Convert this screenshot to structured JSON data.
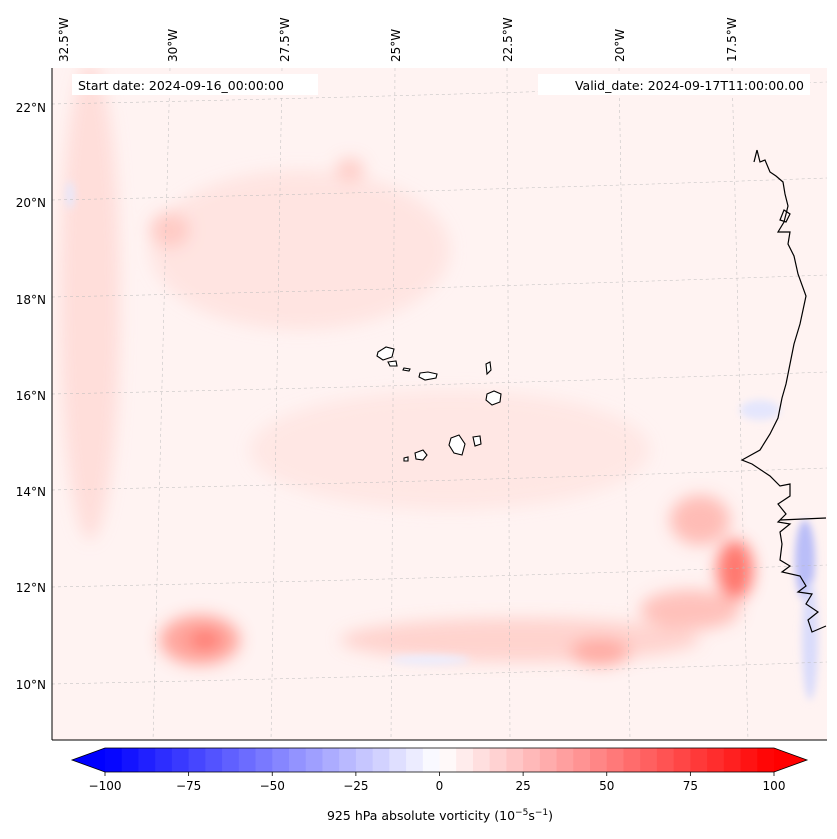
{
  "map": {
    "start_date_label": "Start date: 2024-09-16_00:00:00",
    "valid_date_label": "Valid_date: 2024-09-17T11:00:00.00",
    "lon_ticks": [
      "32.5°W",
      "30°W",
      "27.5°W",
      "25°W",
      "22.5°W",
      "20°W",
      "17.5°W"
    ],
    "lat_ticks": [
      "22°N",
      "20°N",
      "18°N",
      "16°N",
      "14°N",
      "12°N",
      "10°N"
    ],
    "field": "925 hPa absolute vorticity",
    "coastline_color": "#000000"
  },
  "colorbar": {
    "label_main": "925 hPa absolute vorticity (10",
    "label_exp1": "−5",
    "label_mid": "s",
    "label_exp2": "−1",
    "label_end": ")",
    "ticks": [
      "−100",
      "−75",
      "−50",
      "−25",
      "0",
      "25",
      "50",
      "75",
      "100"
    ],
    "tick_values": [
      -100,
      -75,
      -50,
      -25,
      0,
      25,
      50,
      75,
      100
    ],
    "min": -100,
    "max": 100,
    "negative_color": "#0000ff",
    "positive_color": "#ff0000"
  }
}
